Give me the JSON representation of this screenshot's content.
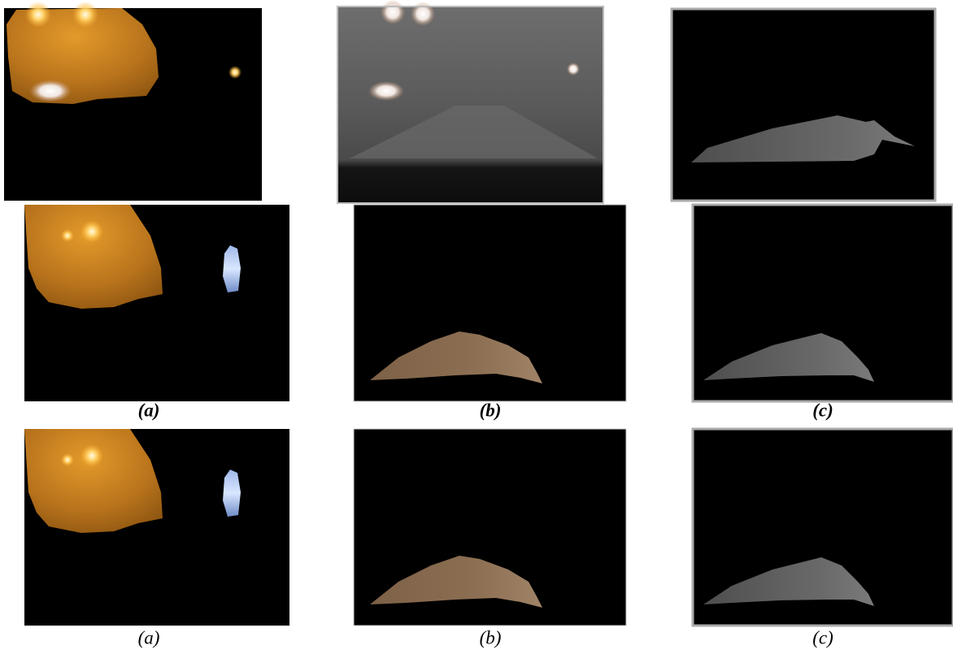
{
  "figure": {
    "caption_rows": [
      [
        "(a)",
        "(b)",
        "(c)"
      ],
      [
        "(a)",
        "(b)",
        "(c)"
      ]
    ]
  }
}
